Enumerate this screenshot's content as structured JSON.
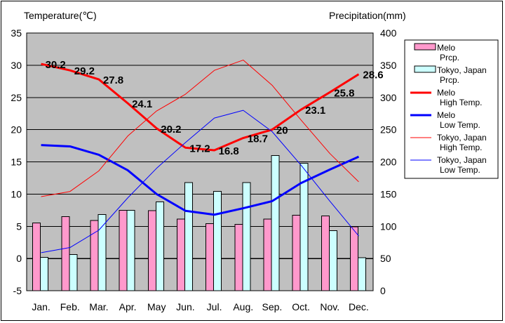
{
  "chart_data": {
    "type": "bar+line",
    "categories": [
      "Jan.",
      "Feb.",
      "Mar.",
      "Apr.",
      "May",
      "Jun.",
      "Jul.",
      "Aug.",
      "Sep.",
      "Oct.",
      "Nov.",
      "Dec."
    ],
    "left_axis": {
      "label": "Temperature(℃)",
      "min": -5,
      "max": 35,
      "step": 5
    },
    "right_axis": {
      "label": "Precipitation(mm)",
      "min": 0,
      "max": 400,
      "step": 50
    },
    "grid": "horizontal",
    "legend_position": "right",
    "plot_background": "#c0c0c0",
    "bar_series": [
      {
        "legend": [
          "Melo",
          "Prcp."
        ],
        "color": "#ff99cc",
        "values": [
          105,
          115,
          109,
          125,
          124,
          111,
          104,
          103,
          111,
          117,
          116,
          99
        ]
      },
      {
        "legend": [
          "Tokyo, Japan",
          "Prcp."
        ],
        "color": "#ccffff",
        "values": [
          52,
          56,
          118,
          125,
          138,
          168,
          154,
          168,
          210,
          198,
          93,
          51
        ]
      }
    ],
    "line_series": [
      {
        "legend": [
          "Melo",
          "High Temp."
        ],
        "color": "#ff0000",
        "width": 3,
        "values": [
          30.2,
          29.2,
          27.8,
          24.1,
          20.2,
          17.2,
          16.8,
          18.7,
          20.0,
          23.1,
          25.8,
          28.6
        ],
        "data_labels": [
          "30.2",
          "29.2",
          "27.8",
          "24.1",
          "20.2",
          "17.2",
          "16.8",
          "18.7",
          "20",
          "23.1",
          "25.8",
          "28.6"
        ]
      },
      {
        "legend": [
          "Melo",
          "Low Temp."
        ],
        "color": "#0000ff",
        "width": 3,
        "values": [
          17.6,
          17.4,
          16.1,
          13.7,
          10.0,
          7.4,
          6.8,
          7.8,
          8.9,
          11.7,
          13.8,
          15.8
        ]
      },
      {
        "legend": [
          "Tokyo, Japan",
          "High Temp."
        ],
        "color": "#ff0000",
        "width": 1,
        "values": [
          9.6,
          10.4,
          13.6,
          19.0,
          22.9,
          25.5,
          29.2,
          30.8,
          26.9,
          21.5,
          16.3,
          11.9
        ]
      },
      {
        "legend": [
          "Tokyo, Japan",
          "Low Temp."
        ],
        "color": "#0000ff",
        "width": 1,
        "values": [
          0.9,
          1.7,
          4.4,
          9.4,
          14.0,
          18.0,
          21.8,
          23.0,
          19.7,
          14.5,
          8.9,
          3.5
        ]
      }
    ]
  }
}
